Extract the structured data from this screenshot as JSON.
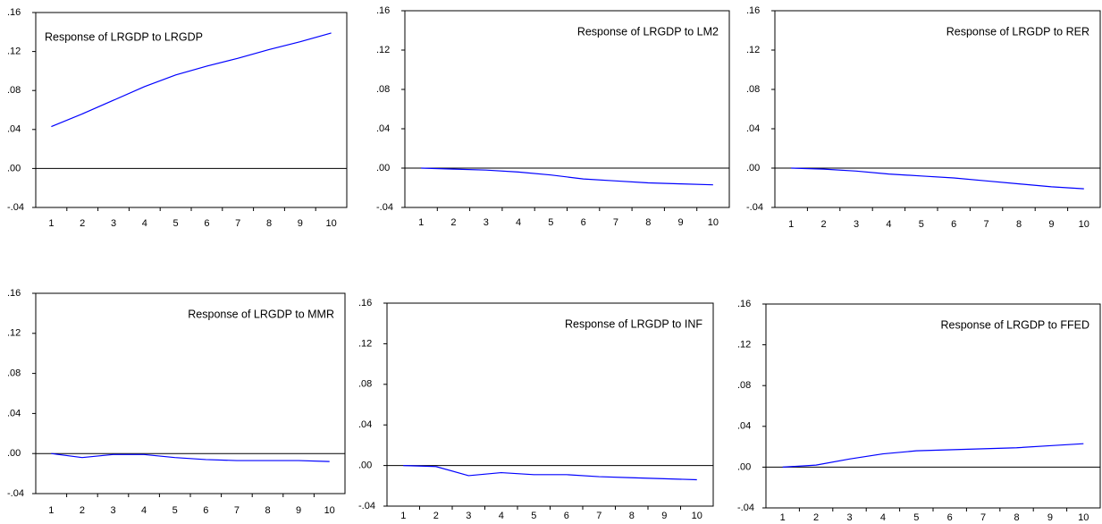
{
  "chart_data": [
    {
      "type": "line",
      "title": "Response of LRGDP to LRGDP",
      "categories": [
        "1",
        "2",
        "3",
        "4",
        "5",
        "6",
        "7",
        "8",
        "9",
        "10"
      ],
      "series": [
        {
          "color": "#0000ff",
          "values": [
            0.043,
            0.056,
            0.07,
            0.084,
            0.096,
            0.105,
            0.113,
            0.122,
            0.13,
            0.139
          ]
        }
      ],
      "ylim": [
        -0.04,
        0.16
      ],
      "yticks": [
        {
          "value": -0.04,
          "label": "-.04"
        },
        {
          "value": 0,
          "label": ".00"
        },
        {
          "value": 0.04,
          "label": ".04"
        },
        {
          "value": 0.08,
          "label": ".08"
        },
        {
          "value": 0.12,
          "label": ".12"
        },
        {
          "value": 0.16,
          "label": ".16"
        }
      ],
      "zero_line": true
    },
    {
      "type": "line",
      "title": "Response of LRGDP to LM2",
      "categories": [
        "1",
        "2",
        "3",
        "4",
        "5",
        "6",
        "7",
        "8",
        "9",
        "10"
      ],
      "series": [
        {
          "color": "#0000ff",
          "values": [
            0,
            -0.001,
            -0.002,
            -0.004,
            -0.007,
            -0.011,
            -0.013,
            -0.015,
            -0.016,
            -0.017
          ]
        }
      ],
      "ylim": [
        -0.04,
        0.16
      ],
      "yticks": [
        {
          "value": -0.04,
          "label": "-.04"
        },
        {
          "value": 0,
          "label": ".00"
        },
        {
          "value": 0.04,
          "label": ".04"
        },
        {
          "value": 0.08,
          "label": ".08"
        },
        {
          "value": 0.12,
          "label": ".12"
        },
        {
          "value": 0.16,
          "label": ".16"
        }
      ],
      "zero_line": true
    },
    {
      "type": "line",
      "title": "Response of LRGDP to RER",
      "categories": [
        "1",
        "2",
        "3",
        "4",
        "5",
        "6",
        "7",
        "8",
        "9",
        "10"
      ],
      "series": [
        {
          "color": "#0000ff",
          "values": [
            0,
            -0.001,
            -0.003,
            -0.006,
            -0.008,
            -0.01,
            -0.013,
            -0.016,
            -0.019,
            -0.021
          ]
        }
      ],
      "ylim": [
        -0.04,
        0.16
      ],
      "yticks": [
        {
          "value": -0.04,
          "label": "-.04"
        },
        {
          "value": 0,
          "label": ".00"
        },
        {
          "value": 0.04,
          "label": ".04"
        },
        {
          "value": 0.08,
          "label": ".08"
        },
        {
          "value": 0.12,
          "label": ".12"
        },
        {
          "value": 0.16,
          "label": ".16"
        }
      ],
      "zero_line": true
    },
    {
      "type": "line",
      "title": "Response of LRGDP to MMR",
      "categories": [
        "1",
        "2",
        "3",
        "4",
        "5",
        "6",
        "7",
        "8",
        "9",
        "10"
      ],
      "series": [
        {
          "color": "#0000ff",
          "values": [
            0,
            -0.004,
            -0.001,
            -0.001,
            -0.004,
            -0.006,
            -0.007,
            -0.007,
            -0.007,
            -0.008
          ]
        }
      ],
      "ylim": [
        -0.04,
        0.16
      ],
      "yticks": [
        {
          "value": -0.04,
          "label": "-.04"
        },
        {
          "value": 0,
          "label": ".00"
        },
        {
          "value": 0.04,
          "label": ".04"
        },
        {
          "value": 0.08,
          "label": ".08"
        },
        {
          "value": 0.12,
          "label": ".12"
        },
        {
          "value": 0.16,
          "label": ".16"
        }
      ],
      "zero_line": true
    },
    {
      "type": "line",
      "title": "Response of LRGDP to INF",
      "categories": [
        "1",
        "2",
        "3",
        "4",
        "5",
        "6",
        "7",
        "8",
        "9",
        "10"
      ],
      "series": [
        {
          "color": "#0000ff",
          "values": [
            0,
            -0.001,
            -0.01,
            -0.007,
            -0.009,
            -0.009,
            -0.011,
            -0.012,
            -0.013,
            -0.014
          ]
        }
      ],
      "ylim": [
        -0.04,
        0.16
      ],
      "yticks": [
        {
          "value": -0.04,
          "label": "-.04"
        },
        {
          "value": 0,
          "label": ".00"
        },
        {
          "value": 0.04,
          "label": ".04"
        },
        {
          "value": 0.08,
          "label": ".08"
        },
        {
          "value": 0.12,
          "label": ".12"
        },
        {
          "value": 0.16,
          "label": ".16"
        }
      ],
      "zero_line": true
    },
    {
      "type": "line",
      "title": "Response of LRGDP to FFED",
      "categories": [
        "1",
        "2",
        "3",
        "4",
        "5",
        "6",
        "7",
        "8",
        "9",
        "10"
      ],
      "series": [
        {
          "color": "#0000ff",
          "values": [
            0,
            0.002,
            0.008,
            0.013,
            0.016,
            0.017,
            0.018,
            0.019,
            0.021,
            0.023
          ]
        }
      ],
      "ylim": [
        -0.04,
        0.16
      ],
      "yticks": [
        {
          "value": -0.04,
          "label": "-.04"
        },
        {
          "value": 0,
          "label": ".00"
        },
        {
          "value": 0.04,
          "label": ".04"
        },
        {
          "value": 0.08,
          "label": ".08"
        },
        {
          "value": 0.12,
          "label": ".12"
        },
        {
          "value": 0.16,
          "label": ".16"
        }
      ],
      "zero_line": true
    }
  ]
}
